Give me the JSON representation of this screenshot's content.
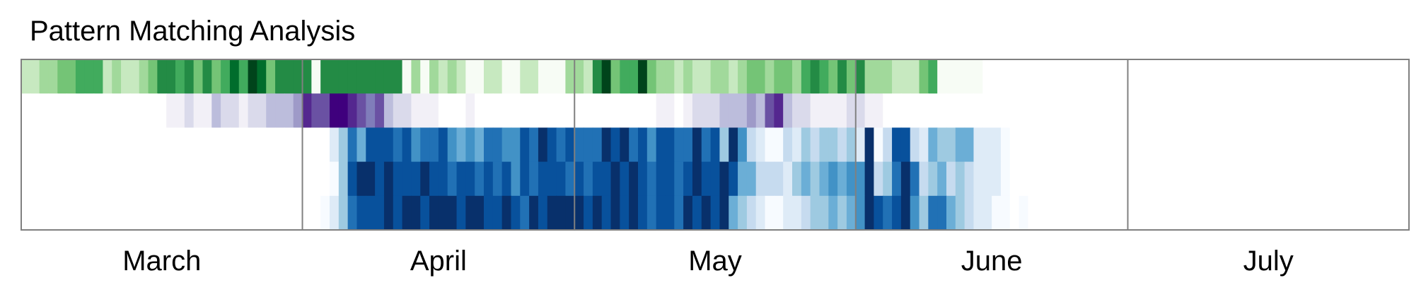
{
  "chart_data": {
    "type": "heatmap",
    "title": "Pattern Matching Analysis",
    "x_axis": {
      "type": "date",
      "range": [
        "2024-03-01",
        "2024-07-31"
      ],
      "tick_labels": [
        "March",
        "April",
        "May",
        "June",
        "July"
      ],
      "month_starts": [
        "2024-03-01",
        "2024-04-01",
        "2024-05-01",
        "2024-06-01",
        "2024-07-01"
      ]
    },
    "grid": false,
    "legend": "none",
    "rows": [
      {
        "palette": "green",
        "colors": [
          "#ffffff",
          "#f7fcf5",
          "#c7e9c0",
          "#a1d99b",
          "#74c476",
          "#41ab5d",
          "#238b45",
          "#006d2c",
          "#00441b"
        ],
        "range": [
          0,
          8
        ],
        "values": [
          2,
          2,
          3,
          3,
          4,
          4,
          5,
          5,
          5,
          2,
          3,
          2,
          2,
          3,
          4,
          6,
          6,
          5,
          6,
          4,
          6,
          4,
          5,
          7,
          5,
          8,
          7,
          4,
          6,
          6,
          6,
          6,
          1,
          6,
          6,
          6,
          6,
          6,
          6,
          6,
          6,
          6,
          1,
          3,
          1,
          3,
          2,
          3,
          2,
          1,
          1,
          2,
          2,
          1,
          1,
          2,
          2,
          1,
          1,
          1,
          3,
          3,
          2,
          6,
          8,
          4,
          5,
          5,
          8,
          4,
          3,
          3,
          2,
          3,
          2,
          2,
          3,
          3,
          2,
          3,
          4,
          4,
          3,
          4,
          4,
          3,
          5,
          6,
          5,
          4,
          6,
          4,
          6,
          3,
          3,
          3,
          2,
          2,
          2,
          4,
          5,
          1,
          1,
          1,
          1,
          1,
          0,
          0,
          0,
          0,
          0,
          0,
          0,
          0,
          0,
          0,
          0,
          0,
          0,
          0,
          0,
          0,
          0,
          0,
          0,
          0,
          0,
          0,
          0,
          0,
          0,
          0,
          0,
          0,
          0,
          0,
          0,
          0,
          0,
          0,
          0,
          0,
          0,
          0,
          0,
          0,
          0,
          0,
          0,
          0,
          0,
          0,
          0
        ]
      },
      {
        "palette": "purple",
        "colors": [
          "#ffffff",
          "#f2f0f7",
          "#dadaeb",
          "#bcbddc",
          "#9e9ac8",
          "#807dba",
          "#6a51a3",
          "#54278f",
          "#3f007d"
        ],
        "range": [
          0,
          8
        ],
        "values": [
          0,
          0,
          0,
          0,
          0,
          0,
          0,
          0,
          0,
          0,
          0,
          0,
          0,
          0,
          0,
          0,
          1,
          1,
          2,
          1,
          1,
          3,
          2,
          2,
          1,
          2,
          2,
          3,
          3,
          3,
          4,
          7,
          6,
          6,
          8,
          8,
          7,
          6,
          5,
          6,
          3,
          2,
          2,
          1,
          1,
          1,
          0,
          0,
          0,
          1,
          0,
          0,
          0,
          0,
          0,
          0,
          0,
          0,
          0,
          0,
          0,
          0,
          0,
          0,
          0,
          0,
          0,
          0,
          0,
          0,
          1,
          1,
          0,
          1,
          2,
          2,
          2,
          3,
          3,
          3,
          4,
          3,
          6,
          7,
          3,
          2,
          2,
          1,
          1,
          1,
          1,
          2,
          2,
          1,
          1,
          0,
          0,
          0,
          0,
          0,
          0,
          0,
          0,
          0,
          0,
          0,
          0,
          0,
          0,
          0,
          0,
          0,
          0,
          0,
          0,
          0,
          0,
          0,
          0,
          0,
          0,
          0,
          0,
          0,
          0,
          0,
          0,
          0,
          0,
          0,
          0,
          0,
          0,
          0,
          0,
          0,
          0,
          0,
          0,
          0,
          0,
          0,
          0,
          0,
          0,
          0,
          0,
          0,
          0,
          0,
          0,
          0,
          0
        ]
      },
      {
        "palette": "blue",
        "colors": [
          "#ffffff",
          "#f7fbff",
          "#deebf7",
          "#c6dbef",
          "#9ecae1",
          "#6baed6",
          "#4292c6",
          "#2171b5",
          "#08519c",
          "#08306b"
        ],
        "range": [
          0,
          9
        ],
        "values": [
          0,
          0,
          0,
          0,
          0,
          0,
          0,
          0,
          0,
          0,
          0,
          0,
          0,
          0,
          0,
          0,
          0,
          0,
          0,
          0,
          0,
          0,
          0,
          0,
          0,
          0,
          0,
          0,
          0,
          0,
          0,
          0,
          0,
          0,
          2,
          4,
          7,
          5,
          8,
          8,
          8,
          7,
          8,
          6,
          7,
          7,
          8,
          6,
          5,
          6,
          5,
          7,
          7,
          6,
          6,
          8,
          7,
          9,
          8,
          7,
          8,
          7,
          7,
          7,
          9,
          8,
          9,
          7,
          8,
          6,
          8,
          8,
          7,
          7,
          9,
          7,
          8,
          4,
          9,
          6,
          3,
          2,
          1,
          1,
          3,
          2,
          4,
          3,
          4,
          4,
          3,
          4,
          2,
          9,
          1,
          3,
          8,
          8,
          3,
          2,
          5,
          4,
          4,
          5,
          5,
          2,
          2,
          2,
          1,
          0,
          0,
          0,
          0,
          0,
          0,
          0,
          0,
          0,
          0,
          0,
          0,
          0,
          0,
          0,
          0,
          0,
          0,
          0,
          0,
          0,
          0,
          0,
          0,
          0,
          0,
          0,
          0,
          0,
          0,
          0,
          0,
          0,
          0,
          0,
          0,
          0,
          0,
          0,
          0,
          0,
          0,
          0,
          0
        ]
      },
      {
        "palette": "blue",
        "colors": [
          "#ffffff",
          "#f7fbff",
          "#deebf7",
          "#c6dbef",
          "#9ecae1",
          "#6baed6",
          "#4292c6",
          "#2171b5",
          "#08519c",
          "#08306b"
        ],
        "range": [
          0,
          9
        ],
        "values": [
          0,
          0,
          0,
          0,
          0,
          0,
          0,
          0,
          0,
          0,
          0,
          0,
          0,
          0,
          0,
          0,
          0,
          0,
          0,
          0,
          0,
          0,
          0,
          0,
          0,
          0,
          0,
          0,
          0,
          0,
          0,
          0,
          0,
          0,
          1,
          4,
          8,
          9,
          9,
          8,
          9,
          8,
          8,
          8,
          9,
          8,
          8,
          7,
          8,
          8,
          7,
          8,
          7,
          8,
          6,
          8,
          7,
          8,
          8,
          8,
          7,
          8,
          7,
          8,
          8,
          9,
          8,
          9,
          8,
          7,
          8,
          8,
          7,
          8,
          9,
          8,
          8,
          9,
          8,
          5,
          5,
          3,
          3,
          3,
          2,
          4,
          5,
          4,
          5,
          6,
          5,
          6,
          6,
          9,
          3,
          4,
          7,
          9,
          7,
          3,
          4,
          5,
          3,
          4,
          3,
          2,
          2,
          2,
          1,
          0,
          0,
          0,
          0,
          0,
          0,
          0,
          0,
          0,
          0,
          0,
          0,
          0,
          0,
          0,
          0,
          0,
          0,
          0,
          0,
          0,
          0,
          0,
          0,
          0,
          0,
          0,
          0,
          0,
          0,
          0,
          0,
          0,
          0,
          0,
          0,
          0,
          0,
          0,
          0,
          0,
          0,
          0,
          0
        ]
      },
      {
        "palette": "blue",
        "colors": [
          "#ffffff",
          "#f7fbff",
          "#deebf7",
          "#c6dbef",
          "#9ecae1",
          "#6baed6",
          "#4292c6",
          "#2171b5",
          "#08519c",
          "#08306b"
        ],
        "range": [
          0,
          9
        ],
        "values": [
          0,
          0,
          0,
          0,
          0,
          0,
          0,
          0,
          0,
          0,
          0,
          0,
          0,
          0,
          0,
          0,
          0,
          0,
          0,
          0,
          0,
          0,
          0,
          0,
          0,
          0,
          0,
          0,
          0,
          0,
          0,
          0,
          0,
          1,
          2,
          4,
          7,
          8,
          8,
          8,
          9,
          8,
          9,
          9,
          8,
          9,
          9,
          9,
          8,
          9,
          9,
          8,
          8,
          9,
          8,
          7,
          9,
          8,
          9,
          9,
          9,
          9,
          8,
          9,
          8,
          9,
          8,
          9,
          8,
          7,
          8,
          8,
          7,
          9,
          8,
          9,
          8,
          9,
          5,
          4,
          3,
          2,
          1,
          1,
          2,
          2,
          3,
          4,
          4,
          5,
          4,
          5,
          6,
          9,
          8,
          7,
          8,
          9,
          6,
          4,
          7,
          7,
          5,
          4,
          3,
          2,
          2,
          1,
          1,
          0,
          1,
          0,
          0,
          0,
          0,
          0,
          0,
          0,
          0,
          0,
          0,
          0,
          0,
          0,
          0,
          0,
          0,
          0,
          0,
          0,
          0,
          0,
          0,
          0,
          0,
          0,
          0,
          0,
          0,
          0,
          0,
          0,
          0,
          0,
          0,
          0,
          0,
          0,
          0,
          0,
          0,
          0,
          0
        ]
      }
    ]
  }
}
